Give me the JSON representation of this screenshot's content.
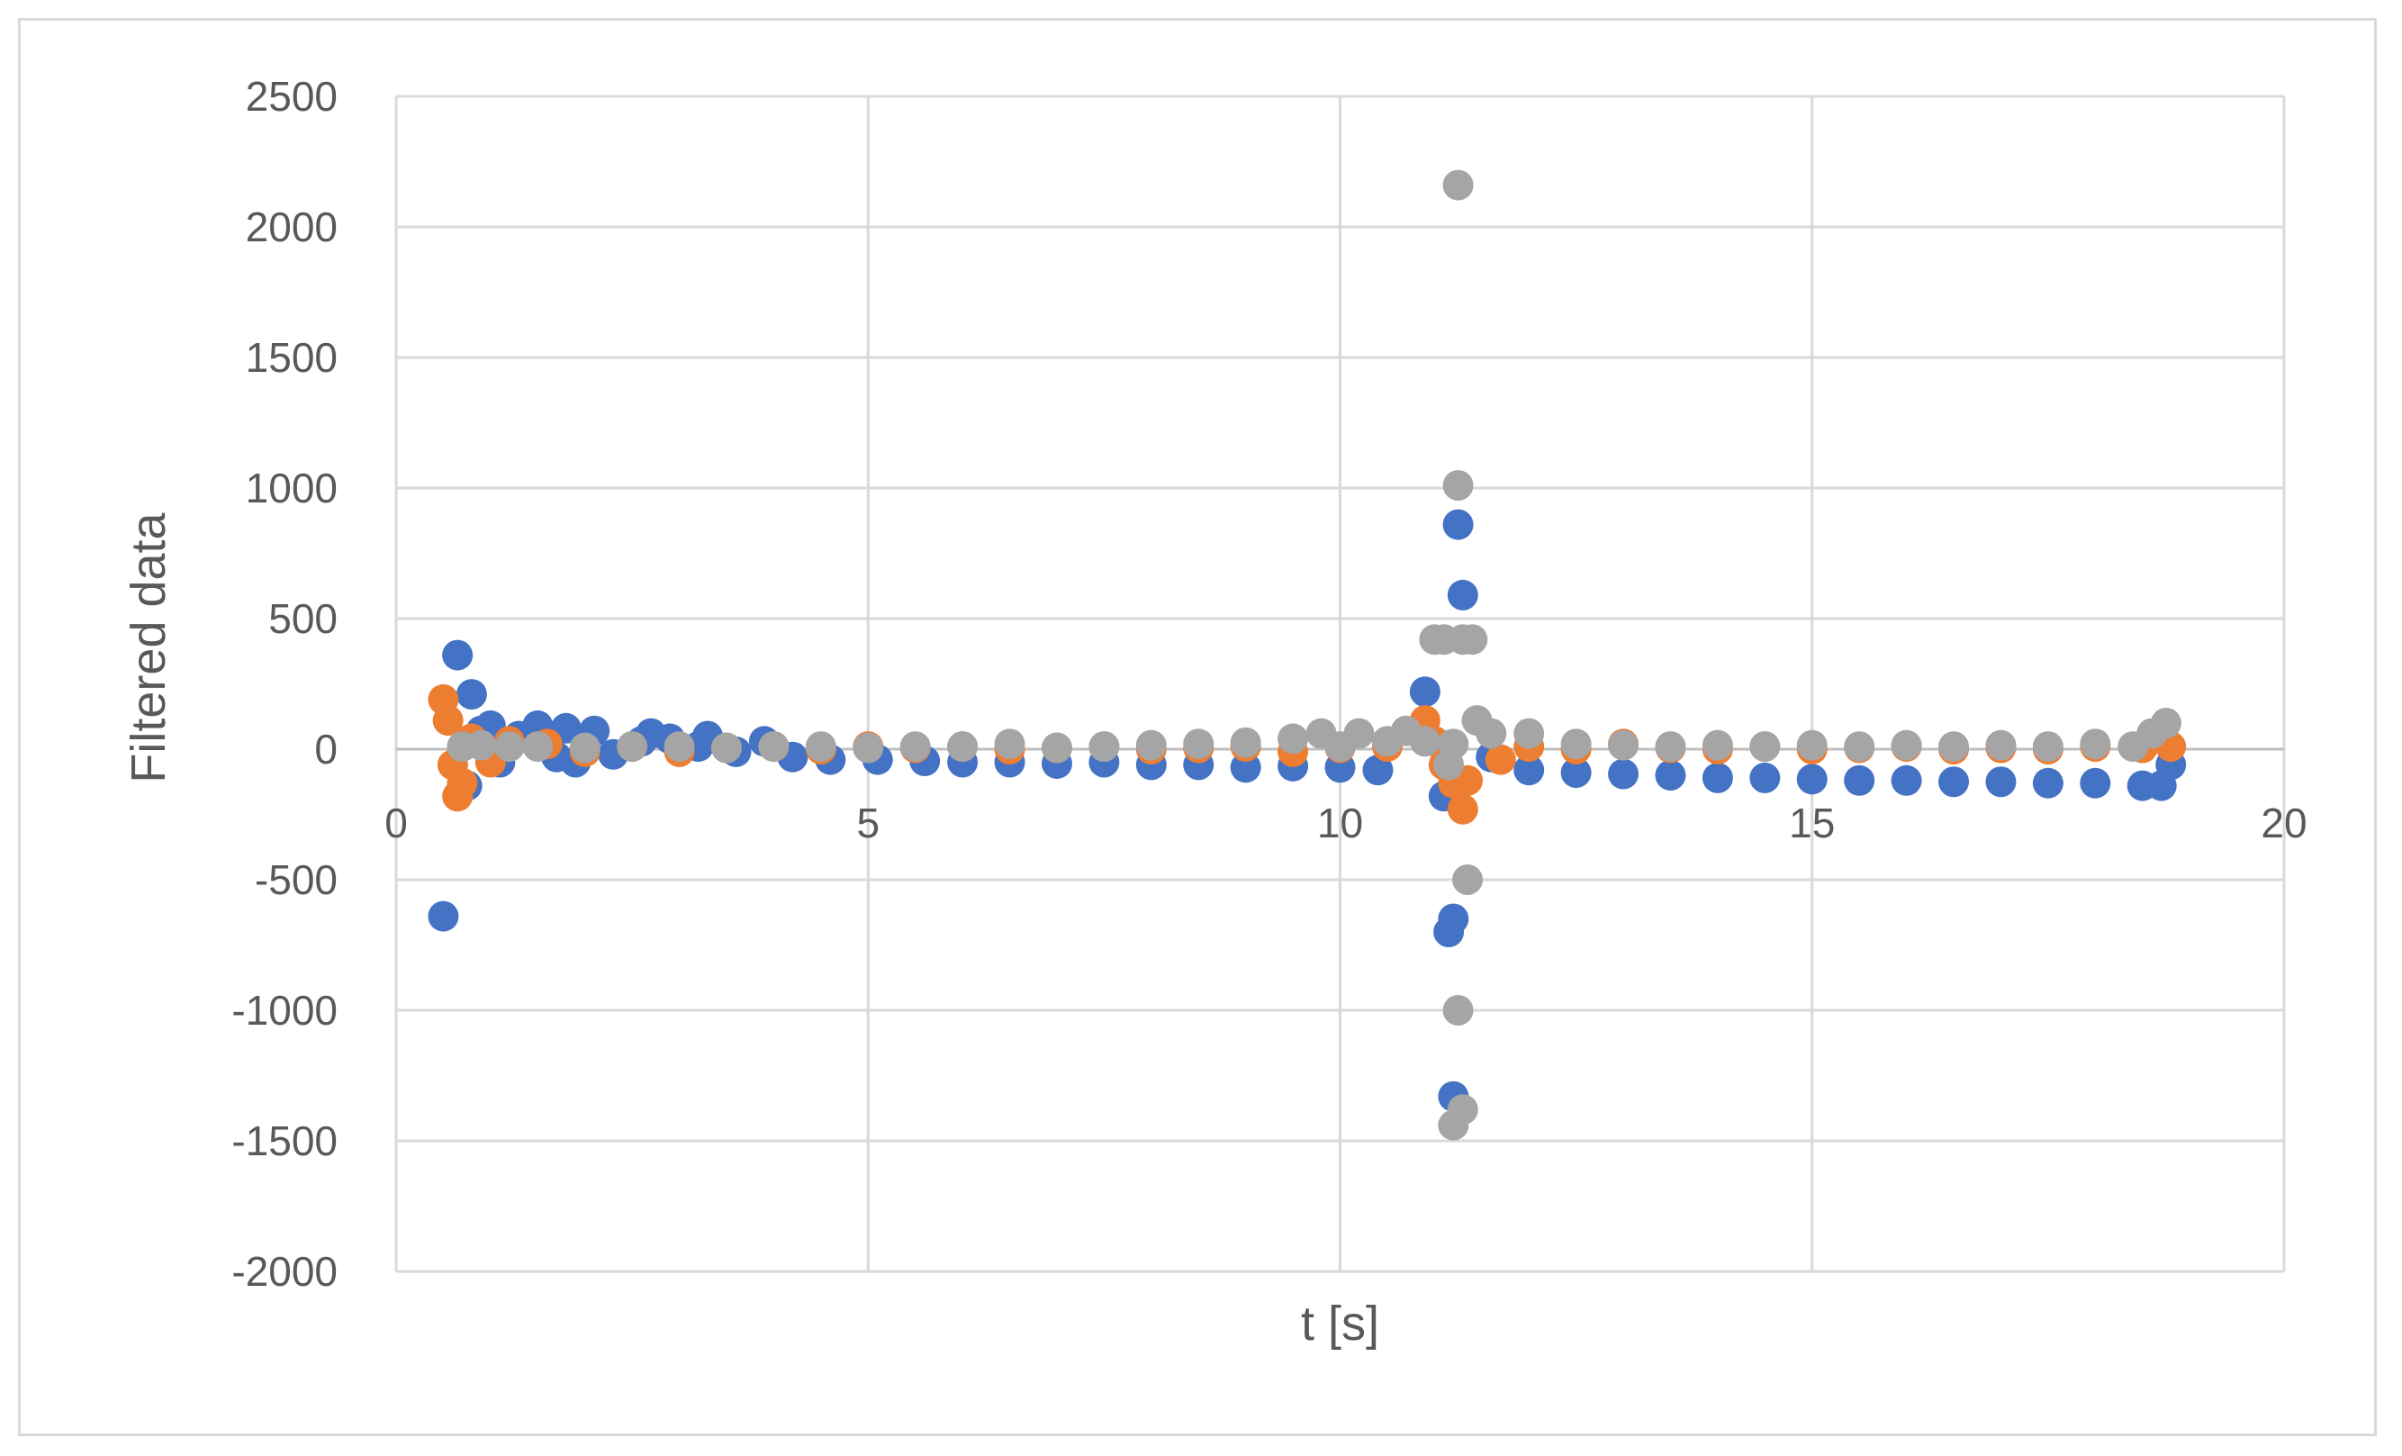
{
  "chart_data": {
    "type": "scatter",
    "title": "",
    "xlabel": "t [s]",
    "ylabel": "Filtered data",
    "xlim": [
      0,
      20
    ],
    "ylim": [
      -2000,
      2500
    ],
    "x_ticks": [
      0,
      5,
      10,
      15,
      20
    ],
    "y_ticks": [
      2500,
      2000,
      1500,
      1000,
      500,
      0,
      -500,
      -1000,
      -1500,
      -2000
    ],
    "grid": true,
    "legend": "none",
    "series": [
      {
        "color": "#4472C4",
        "points": [
          [
            0.5,
            -640
          ],
          [
            0.65,
            360
          ],
          [
            0.8,
            210
          ],
          [
            0.75,
            -140
          ],
          [
            0.9,
            70
          ],
          [
            1.0,
            90
          ],
          [
            1.1,
            -50
          ],
          [
            1.3,
            50
          ],
          [
            1.5,
            90
          ],
          [
            1.7,
            -30
          ],
          [
            1.8,
            80
          ],
          [
            1.9,
            -50
          ],
          [
            2.1,
            70
          ],
          [
            2.3,
            -20
          ],
          [
            2.6,
            30
          ],
          [
            2.7,
            60
          ],
          [
            2.9,
            40
          ],
          [
            3.2,
            10
          ],
          [
            3.3,
            50
          ],
          [
            3.6,
            -10
          ],
          [
            3.9,
            30
          ],
          [
            4.2,
            -30
          ],
          [
            4.6,
            -40
          ],
          [
            5.1,
            -40
          ],
          [
            5.6,
            -45
          ],
          [
            6.0,
            -50
          ],
          [
            6.5,
            -50
          ],
          [
            7.0,
            -55
          ],
          [
            7.5,
            -50
          ],
          [
            8.0,
            -60
          ],
          [
            8.5,
            -60
          ],
          [
            9.0,
            -70
          ],
          [
            9.5,
            -65
          ],
          [
            10.0,
            -70
          ],
          [
            10.4,
            -80
          ],
          [
            10.9,
            220
          ],
          [
            11.1,
            -180
          ],
          [
            11.15,
            -700
          ],
          [
            11.2,
            -650
          ],
          [
            11.2,
            -1330
          ],
          [
            11.25,
            860
          ],
          [
            11.3,
            590
          ],
          [
            11.6,
            -30
          ],
          [
            12.0,
            -80
          ],
          [
            12.5,
            -90
          ],
          [
            13.0,
            -95
          ],
          [
            13.5,
            -100
          ],
          [
            14.0,
            -110
          ],
          [
            14.5,
            -110
          ],
          [
            15.0,
            -115
          ],
          [
            15.5,
            -120
          ],
          [
            16.0,
            -120
          ],
          [
            16.5,
            -125
          ],
          [
            17.0,
            -125
          ],
          [
            17.5,
            -130
          ],
          [
            18.0,
            -130
          ],
          [
            18.5,
            -140
          ],
          [
            18.7,
            -140
          ],
          [
            18.8,
            -60
          ]
        ]
      },
      {
        "color": "#ED7D31",
        "points": [
          [
            0.5,
            190
          ],
          [
            0.55,
            110
          ],
          [
            0.6,
            -60
          ],
          [
            0.65,
            -180
          ],
          [
            0.7,
            -130
          ],
          [
            0.8,
            40
          ],
          [
            1.0,
            -50
          ],
          [
            1.2,
            30
          ],
          [
            1.6,
            20
          ],
          [
            2.0,
            -10
          ],
          [
            2.5,
            10
          ],
          [
            3.0,
            -10
          ],
          [
            3.5,
            5
          ],
          [
            4.0,
            10
          ],
          [
            4.5,
            0
          ],
          [
            5.0,
            10
          ],
          [
            5.5,
            5
          ],
          [
            6.0,
            10
          ],
          [
            6.5,
            0
          ],
          [
            7.0,
            5
          ],
          [
            7.5,
            10
          ],
          [
            8.0,
            0
          ],
          [
            8.5,
            5
          ],
          [
            9.0,
            10
          ],
          [
            9.5,
            -10
          ],
          [
            10.0,
            5
          ],
          [
            10.5,
            10
          ],
          [
            10.9,
            110
          ],
          [
            11.0,
            30
          ],
          [
            11.1,
            -60
          ],
          [
            11.2,
            -130
          ],
          [
            11.3,
            -230
          ],
          [
            11.35,
            -120
          ],
          [
            11.7,
            -40
          ],
          [
            12.0,
            10
          ],
          [
            12.5,
            0
          ],
          [
            13.0,
            20
          ],
          [
            13.5,
            5
          ],
          [
            14.0,
            0
          ],
          [
            14.5,
            10
          ],
          [
            15.0,
            0
          ],
          [
            15.5,
            5
          ],
          [
            16.0,
            10
          ],
          [
            16.5,
            0
          ],
          [
            17.0,
            5
          ],
          [
            17.5,
            0
          ],
          [
            18.0,
            10
          ],
          [
            18.5,
            5
          ],
          [
            18.8,
            10
          ]
        ]
      },
      {
        "color": "#A5A5A5",
        "points": [
          [
            0.7,
            10
          ],
          [
            0.9,
            15
          ],
          [
            1.2,
            10
          ],
          [
            1.5,
            10
          ],
          [
            2.0,
            5
          ],
          [
            2.5,
            10
          ],
          [
            3.0,
            10
          ],
          [
            3.5,
            5
          ],
          [
            4.0,
            10
          ],
          [
            4.5,
            10
          ],
          [
            5.0,
            5
          ],
          [
            5.5,
            10
          ],
          [
            6.0,
            10
          ],
          [
            6.5,
            20
          ],
          [
            7.0,
            5
          ],
          [
            7.5,
            10
          ],
          [
            8.0,
            15
          ],
          [
            8.5,
            20
          ],
          [
            9.0,
            25
          ],
          [
            9.5,
            40
          ],
          [
            9.8,
            60
          ],
          [
            10.0,
            10
          ],
          [
            10.2,
            60
          ],
          [
            10.5,
            30
          ],
          [
            10.7,
            70
          ],
          [
            10.9,
            30
          ],
          [
            11.0,
            420
          ],
          [
            11.1,
            420
          ],
          [
            11.15,
            -60
          ],
          [
            11.2,
            20
          ],
          [
            11.25,
            2160
          ],
          [
            11.25,
            1010
          ],
          [
            11.25,
            -1000
          ],
          [
            11.3,
            420
          ],
          [
            11.35,
            -500
          ],
          [
            11.4,
            420
          ],
          [
            11.45,
            110
          ],
          [
            11.2,
            -1440
          ],
          [
            11.3,
            -1380
          ],
          [
            11.6,
            60
          ],
          [
            12.0,
            60
          ],
          [
            12.5,
            20
          ],
          [
            13.0,
            15
          ],
          [
            13.5,
            10
          ],
          [
            14.0,
            15
          ],
          [
            14.5,
            10
          ],
          [
            15.0,
            15
          ],
          [
            15.5,
            10
          ],
          [
            16.0,
            15
          ],
          [
            16.5,
            10
          ],
          [
            17.0,
            15
          ],
          [
            17.5,
            10
          ],
          [
            18.0,
            20
          ],
          [
            18.4,
            10
          ],
          [
            18.6,
            60
          ],
          [
            18.75,
            100
          ]
        ]
      }
    ]
  }
}
